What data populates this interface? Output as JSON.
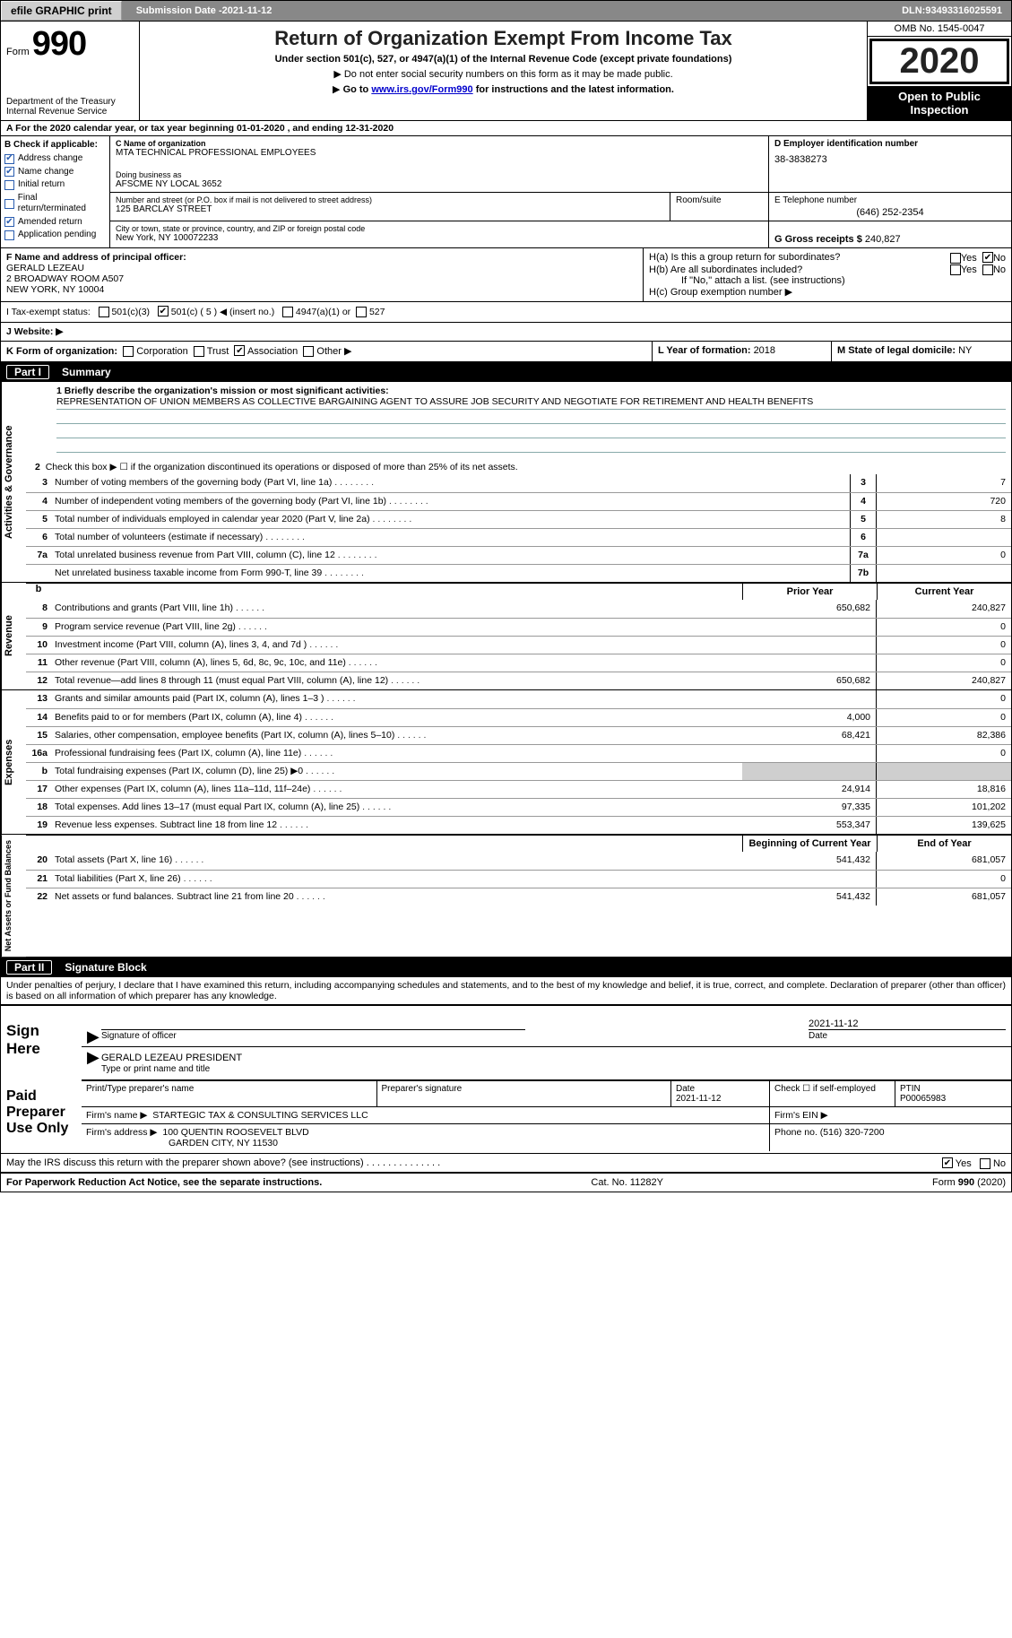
{
  "colors": {
    "link": "#0000cc",
    "header_bg": "#888888",
    "part_bg": "#000000",
    "shade": "#cfcfcf",
    "chk_blue": "#2a5db0"
  },
  "top_bar": {
    "efile_btn": "efile GRAPHIC print",
    "sub_date_label": "Submission Date - ",
    "sub_date": "2021-11-12",
    "dln_label": "DLN: ",
    "dln": "93493316025591"
  },
  "header": {
    "form_word": "Form",
    "form_num": "990",
    "dept": "Department of the Treasury",
    "irs": "Internal Revenue Service",
    "title": "Return of Organization Exempt From Income Tax",
    "subtitle": "Under section 501(c), 527, or 4947(a)(1) of the Internal Revenue Code (except private foundations)",
    "no_ssn": "Do not enter social security numbers on this form as it may be made public.",
    "go_to_pre": "Go to ",
    "go_to_link": "www.irs.gov/Form990",
    "go_to_post": " for instructions and the latest information.",
    "omb": "OMB No. 1545-0047",
    "year": "2020",
    "open_public_1": "Open to Public",
    "open_public_2": "Inspection"
  },
  "row_a": "A For the 2020 calendar year, or tax year beginning 01-01-2020   , and ending 12-31-2020",
  "block_b": {
    "title": "B Check if applicable:",
    "items": [
      {
        "label": "Address change",
        "checked": true
      },
      {
        "label": "Name change",
        "checked": true
      },
      {
        "label": "Initial return",
        "checked": false
      },
      {
        "label": "Final return/terminated",
        "checked": false
      },
      {
        "label": "Amended return",
        "checked": true
      },
      {
        "label": "Application pending",
        "checked": false
      }
    ]
  },
  "block_c": {
    "name_lbl": "C Name of organization",
    "name": "MTA TECHNICAL PROFESSIONAL EMPLOYEES",
    "dba_lbl": "Doing business as",
    "dba": "AFSCME NY LOCAL 3652",
    "addr_lbl": "Number and street (or P.O. box if mail is not delivered to street address)",
    "addr": "125 BARCLAY STREET",
    "room_lbl": "Room/suite",
    "city_lbl": "City or town, state or province, country, and ZIP or foreign postal code",
    "city": "New York, NY  100072233"
  },
  "block_d": {
    "lbl": "D Employer identification number",
    "val": "38-3838273"
  },
  "block_e": {
    "lbl": "E Telephone number",
    "val": "(646) 252-2354"
  },
  "block_g": {
    "lbl": "G Gross receipts $ ",
    "val": "240,827"
  },
  "block_f": {
    "lbl": "F Name and address of principal officer:",
    "line1": "GERALD LEZEAU",
    "line2": "2 BROADWAY ROOM A507",
    "line3": "NEW YORK, NY  10004"
  },
  "block_h": {
    "a": "H(a)  Is this a group return for subordinates?",
    "b": "H(b)  Are all subordinates included?",
    "b_note": "If \"No,\" attach a list. (see instructions)",
    "c": "H(c)  Group exemption number ▶",
    "yes": "Yes",
    "no": "No"
  },
  "row_i": {
    "lbl": "I   Tax-exempt status:",
    "c3": "501(c)(3)",
    "c": "501(c) ( 5 ) ◀ (insert no.)",
    "a1": "4947(a)(1) or",
    "s527": "527"
  },
  "row_j": {
    "lbl": "J   Website: ▶"
  },
  "row_k": {
    "lbl": "K Form of organization:",
    "corp": "Corporation",
    "trust": "Trust",
    "assoc": "Association",
    "other": "Other ▶"
  },
  "row_l": {
    "lbl": "L Year of formation: ",
    "val": "2018"
  },
  "row_m": {
    "lbl": "M State of legal domicile: ",
    "val": "NY"
  },
  "part1": {
    "label": "Part I",
    "title": "Summary",
    "q1_lbl": "1  Briefly describe the organization's mission or most significant activities:",
    "q1_val": "REPRESENTATION OF UNION MEMBERS AS COLLECTIVE BARGAINING AGENT TO ASSURE JOB SECURITY AND NEGOTIATE FOR RETIREMENT AND HEALTH BENEFITS",
    "q2": "Check this box ▶ ☐  if the organization discontinued its operations or disposed of more than 25% of its net assets.",
    "side1": "Activities & Governance",
    "side2": "Revenue",
    "side3": "Expenses",
    "side4": "Net Assets or Fund Balances",
    "col_prior": "Prior Year",
    "col_current": "Current Year",
    "col_begin": "Beginning of Current Year",
    "col_end": "End of Year",
    "gov_lines": [
      {
        "n": "3",
        "txt": "Number of voting members of the governing body (Part VI, line 1a)",
        "code": "3",
        "v": "7"
      },
      {
        "n": "4",
        "txt": "Number of independent voting members of the governing body (Part VI, line 1b)",
        "code": "4",
        "v": "720"
      },
      {
        "n": "5",
        "txt": "Total number of individuals employed in calendar year 2020 (Part V, line 2a)",
        "code": "5",
        "v": "8"
      },
      {
        "n": "6",
        "txt": "Total number of volunteers (estimate if necessary)",
        "code": "6",
        "v": ""
      },
      {
        "n": "7a",
        "txt": "Total unrelated business revenue from Part VIII, column (C), line 12",
        "code": "7a",
        "v": "0"
      },
      {
        "n": "",
        "txt": "Net unrelated business taxable income from Form 990-T, line 39",
        "code": "7b",
        "v": ""
      }
    ],
    "rev_lines": [
      {
        "n": "8",
        "txt": "Contributions and grants (Part VIII, line 1h)",
        "p": "650,682",
        "c": "240,827"
      },
      {
        "n": "9",
        "txt": "Program service revenue (Part VIII, line 2g)",
        "p": "",
        "c": "0"
      },
      {
        "n": "10",
        "txt": "Investment income (Part VIII, column (A), lines 3, 4, and 7d )",
        "p": "",
        "c": "0"
      },
      {
        "n": "11",
        "txt": "Other revenue (Part VIII, column (A), lines 5, 6d, 8c, 9c, 10c, and 11e)",
        "p": "",
        "c": "0"
      },
      {
        "n": "12",
        "txt": "Total revenue—add lines 8 through 11 (must equal Part VIII, column (A), line 12)",
        "p": "650,682",
        "c": "240,827"
      }
    ],
    "exp_lines": [
      {
        "n": "13",
        "txt": "Grants and similar amounts paid (Part IX, column (A), lines 1–3 )",
        "p": "",
        "c": "0"
      },
      {
        "n": "14",
        "txt": "Benefits paid to or for members (Part IX, column (A), line 4)",
        "p": "4,000",
        "c": "0"
      },
      {
        "n": "15",
        "txt": "Salaries, other compensation, employee benefits (Part IX, column (A), lines 5–10)",
        "p": "68,421",
        "c": "82,386"
      },
      {
        "n": "16a",
        "txt": "Professional fundraising fees (Part IX, column (A), line 11e)",
        "p": "",
        "c": "0"
      },
      {
        "n": "b",
        "txt": "Total fundraising expenses (Part IX, column (D), line 25) ▶0",
        "p": "SHADE",
        "c": "SHADE"
      },
      {
        "n": "17",
        "txt": "Other expenses (Part IX, column (A), lines 11a–11d, 11f–24e)",
        "p": "24,914",
        "c": "18,816"
      },
      {
        "n": "18",
        "txt": "Total expenses. Add lines 13–17 (must equal Part IX, column (A), line 25)",
        "p": "97,335",
        "c": "101,202"
      },
      {
        "n": "19",
        "txt": "Revenue less expenses. Subtract line 18 from line 12",
        "p": "553,347",
        "c": "139,625"
      }
    ],
    "net_lines": [
      {
        "n": "20",
        "txt": "Total assets (Part X, line 16)",
        "p": "541,432",
        "c": "681,057"
      },
      {
        "n": "21",
        "txt": "Total liabilities (Part X, line 26)",
        "p": "",
        "c": "0"
      },
      {
        "n": "22",
        "txt": "Net assets or fund balances. Subtract line 21 from line 20",
        "p": "541,432",
        "c": "681,057"
      }
    ]
  },
  "part2": {
    "label": "Part II",
    "title": "Signature Block",
    "penalty": "Under penalties of perjury, I declare that I have examined this return, including accompanying schedules and statements, and to the best of my knowledge and belief, it is true, correct, and complete. Declaration of preparer (other than officer) is based on all information of which preparer has any knowledge.",
    "sign_here": "Sign Here",
    "sig_officer": "Signature of officer",
    "sig_date": "2021-11-12",
    "date_lbl": "Date",
    "officer_name": "GERALD LEZEAU  PRESIDENT",
    "type_name": "Type or print name and title",
    "paid": "Paid Preparer Use Only",
    "prep_name_lbl": "Print/Type preparer's name",
    "prep_sig_lbl": "Preparer's signature",
    "prep_date_lbl": "Date",
    "prep_date": "2021-11-12",
    "prep_check_lbl": "Check ☐ if self-employed",
    "ptin_lbl": "PTIN",
    "ptin": "P00065983",
    "firm_name_lbl": "Firm's name    ▶",
    "firm_name": "STARTEGIC TAX & CONSULTING SERVICES LLC",
    "firm_ein_lbl": "Firm's EIN ▶",
    "firm_addr_lbl": "Firm's address ▶",
    "firm_addr1": "100 QUENTIN ROOSEVELT BLVD",
    "firm_addr2": "GARDEN CITY, NY  11530",
    "phone_lbl": "Phone no. ",
    "phone": "(516) 320-7200",
    "discuss": "May the IRS discuss this return with the preparer shown above? (see instructions)",
    "yes": "Yes",
    "no": "No"
  },
  "footer": {
    "pra": "For Paperwork Reduction Act Notice, see the separate instructions.",
    "cat": "Cat. No. 11282Y",
    "form": "Form 990 (2020)"
  }
}
